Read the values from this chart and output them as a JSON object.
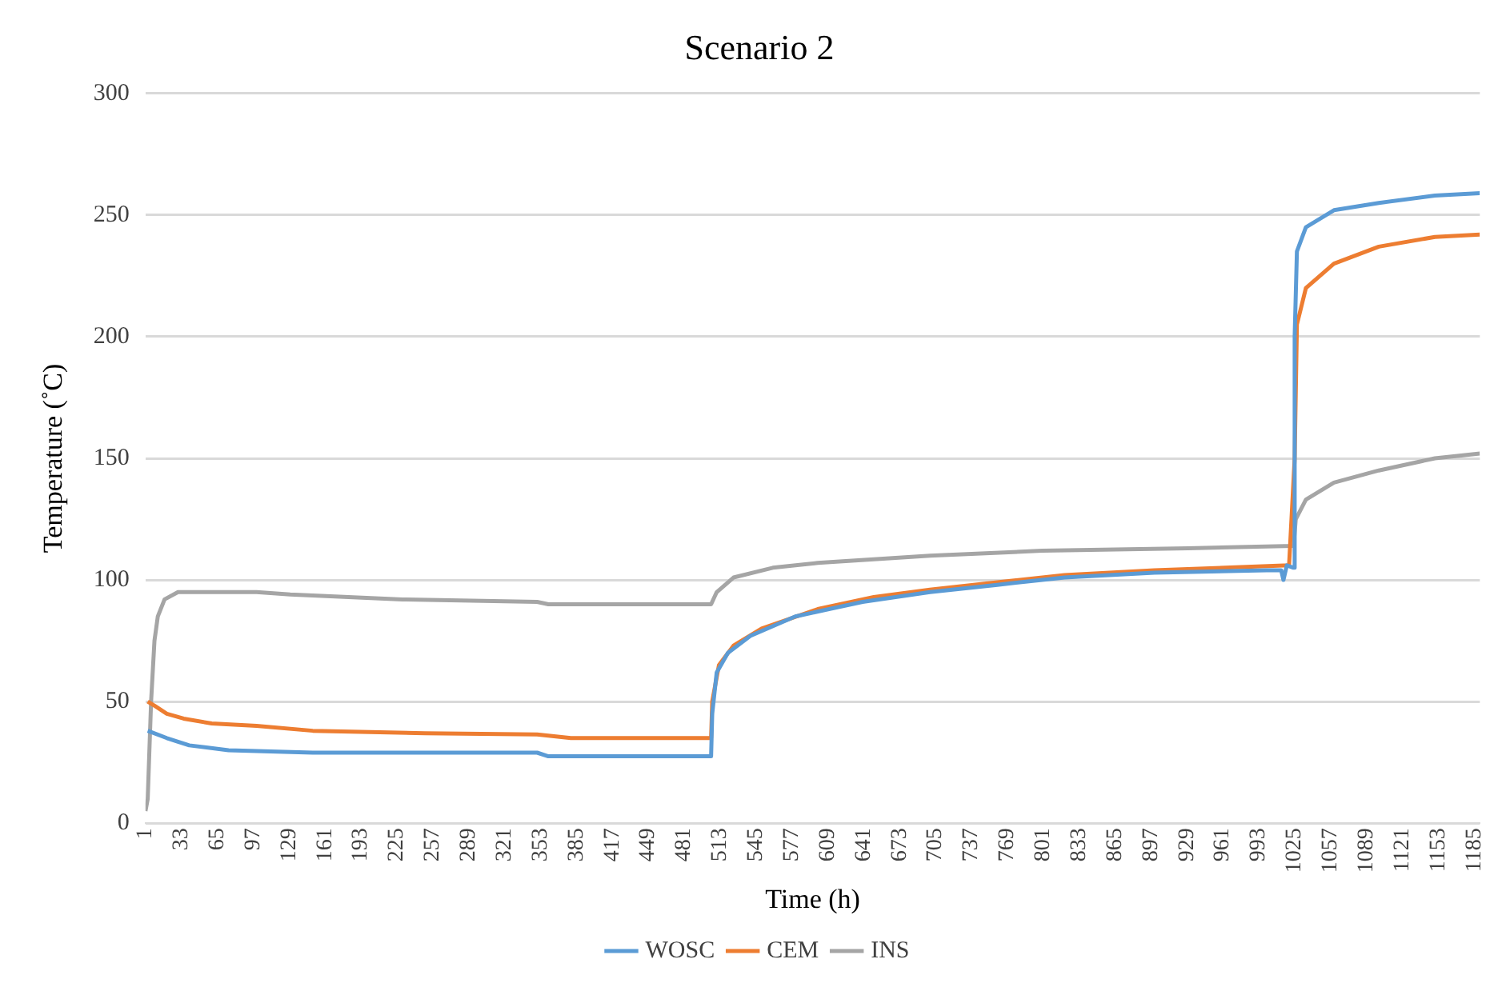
{
  "chart_data": {
    "type": "line",
    "title": "Scenario 2",
    "xlabel": "Time (h)",
    "ylabel": "Temperature (˚C)",
    "xlim": [
      1,
      1190
    ],
    "xticks": [
      1,
      33,
      65,
      97,
      129,
      161,
      193,
      225,
      257,
      289,
      321,
      353,
      385,
      417,
      449,
      481,
      513,
      545,
      577,
      609,
      641,
      673,
      705,
      737,
      769,
      801,
      833,
      865,
      897,
      929,
      961,
      993,
      1025,
      1057,
      1089,
      1121,
      1153,
      1185
    ],
    "ylim": [
      0,
      300
    ],
    "yticks": [
      0,
      50,
      100,
      150,
      200,
      250,
      300
    ],
    "grid": "y",
    "legend": "bottom",
    "marker": "none",
    "line_style": "solid",
    "series": [
      {
        "name": "WOSC",
        "color": "#5b9bd5",
        "x": [
          3,
          20,
          40,
          75,
          150,
          350,
          360,
          505,
          506,
          510,
          520,
          540,
          580,
          640,
          700,
          760,
          820,
          900,
          1000,
          1013,
          1015,
          1018,
          1024,
          1025,
          1027,
          1035,
          1060,
          1100,
          1150,
          1190
        ],
        "values": [
          38,
          35,
          32,
          30,
          29,
          29,
          27.5,
          27.5,
          45,
          62,
          70,
          77,
          85,
          91,
          95,
          98,
          101,
          103,
          104,
          104,
          100,
          106,
          105,
          200,
          235,
          245,
          252,
          255,
          258,
          259
        ]
      },
      {
        "name": "CEM",
        "color": "#ed7d31",
        "x": [
          3,
          10,
          20,
          35,
          60,
          100,
          150,
          250,
          350,
          380,
          505,
          506,
          512,
          525,
          550,
          600,
          650,
          700,
          760,
          820,
          900,
          1020,
          1025,
          1027,
          1035,
          1060,
          1100,
          1150,
          1190
        ],
        "values": [
          50,
          48,
          45,
          43,
          41,
          40,
          38,
          37,
          36.5,
          35,
          35,
          50,
          65,
          73,
          80,
          88,
          93,
          96,
          99,
          102,
          104,
          106,
          150,
          205,
          220,
          230,
          237,
          241,
          242
        ]
      },
      {
        "name": "INS",
        "color": "#a5a5a5",
        "x": [
          1,
          3,
          6,
          9,
          12,
          18,
          30,
          100,
          130,
          230,
          350,
          360,
          505,
          510,
          525,
          560,
          600,
          700,
          800,
          930,
          1024,
          1026,
          1035,
          1060,
          1100,
          1150,
          1190
        ],
        "values": [
          5,
          10,
          50,
          75,
          85,
          92,
          95,
          95,
          94,
          92,
          91,
          90,
          90,
          95,
          101,
          105,
          107,
          110,
          112,
          113,
          114,
          125,
          133,
          140,
          145,
          150,
          152
        ]
      }
    ]
  }
}
